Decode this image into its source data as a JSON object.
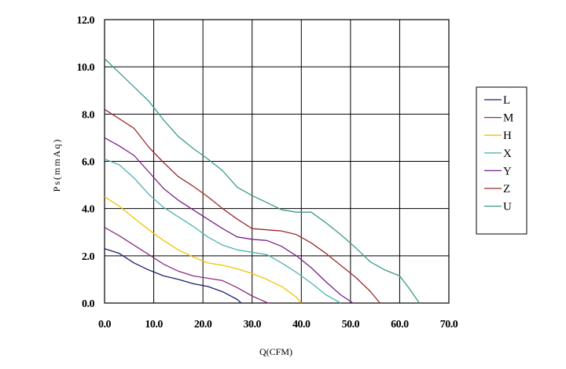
{
  "chart_data": {
    "type": "line",
    "xlabel": "Q(CFM)",
    "ylabel": "Ps(mmAq)",
    "xlim": [
      0,
      70
    ],
    "ylim": [
      0,
      12
    ],
    "xticks": [
      "0.0",
      "10.0",
      "20.0",
      "30.0",
      "40.0",
      "50.0",
      "60.0",
      "70.0"
    ],
    "yticks": [
      "0.0",
      "2.0",
      "4.0",
      "6.0",
      "8.0",
      "10.0",
      "12.0"
    ],
    "grid": true,
    "legend_position": "right",
    "series": [
      {
        "name": "L",
        "color": "#1f1f6e",
        "x": [
          0,
          3,
          6,
          9,
          12,
          15,
          18,
          21,
          24,
          27,
          27.8
        ],
        "y": [
          2.3,
          2.1,
          1.7,
          1.4,
          1.15,
          1.0,
          0.82,
          0.7,
          0.48,
          0.15,
          0
        ]
      },
      {
        "name": "M",
        "color": "#8e2c7e",
        "x": [
          0,
          3,
          6,
          9,
          12,
          15,
          18,
          21,
          24,
          27,
          30,
          33,
          33.5
        ],
        "y": [
          3.2,
          2.85,
          2.45,
          2.05,
          1.65,
          1.35,
          1.15,
          1.05,
          0.95,
          0.65,
          0.3,
          0.02,
          0
        ]
      },
      {
        "name": "H",
        "color": "#f2c200",
        "x": [
          0,
          3,
          6,
          9,
          12,
          15,
          18,
          21,
          24,
          27,
          30,
          33,
          36,
          39,
          40
        ],
        "y": [
          4.5,
          4.1,
          3.6,
          3.1,
          2.65,
          2.25,
          1.95,
          1.7,
          1.6,
          1.45,
          1.25,
          1.0,
          0.7,
          0.25,
          0
        ]
      },
      {
        "name": "X",
        "color": "#4fb3b3",
        "x": [
          0,
          3,
          6,
          9,
          12,
          15,
          18,
          21,
          24,
          27,
          30,
          33,
          36,
          39,
          42,
          45,
          48
        ],
        "y": [
          6.1,
          5.85,
          5.3,
          4.6,
          4.05,
          3.65,
          3.25,
          2.8,
          2.45,
          2.25,
          2.15,
          2.05,
          1.7,
          1.3,
          0.85,
          0.35,
          0
        ]
      },
      {
        "name": "Y",
        "color": "#7a1f8a",
        "x": [
          0,
          3,
          6,
          9,
          12,
          15,
          18,
          21,
          24,
          27,
          30,
          33,
          36,
          39,
          42,
          45,
          48,
          50.5
        ],
        "y": [
          7.0,
          6.65,
          6.25,
          5.55,
          4.85,
          4.35,
          3.95,
          3.55,
          3.15,
          2.8,
          2.7,
          2.65,
          2.4,
          2.0,
          1.5,
          0.9,
          0.35,
          0
        ]
      },
      {
        "name": "Z",
        "color": "#9b2c2c",
        "x": [
          0,
          3,
          6,
          9,
          12,
          15,
          18,
          21,
          24,
          27,
          30,
          33,
          36,
          39,
          42,
          45,
          48,
          51,
          54,
          56
        ],
        "y": [
          8.2,
          7.8,
          7.4,
          6.6,
          5.95,
          5.35,
          4.95,
          4.5,
          4.0,
          3.55,
          3.15,
          3.1,
          3.05,
          2.9,
          2.55,
          2.1,
          1.6,
          1.1,
          0.5,
          0
        ]
      },
      {
        "name": "U",
        "color": "#3a9a8c",
        "x": [
          0,
          3,
          6,
          9,
          12,
          15,
          18,
          21,
          24,
          27,
          30,
          33,
          36,
          39,
          42,
          45,
          48,
          51,
          54,
          57,
          60,
          62,
          64
        ],
        "y": [
          10.35,
          9.75,
          9.15,
          8.55,
          7.75,
          7.05,
          6.55,
          6.1,
          5.6,
          4.9,
          4.55,
          4.25,
          3.95,
          3.85,
          3.85,
          3.4,
          2.9,
          2.35,
          1.75,
          1.4,
          1.15,
          0.6,
          0
        ]
      }
    ]
  }
}
